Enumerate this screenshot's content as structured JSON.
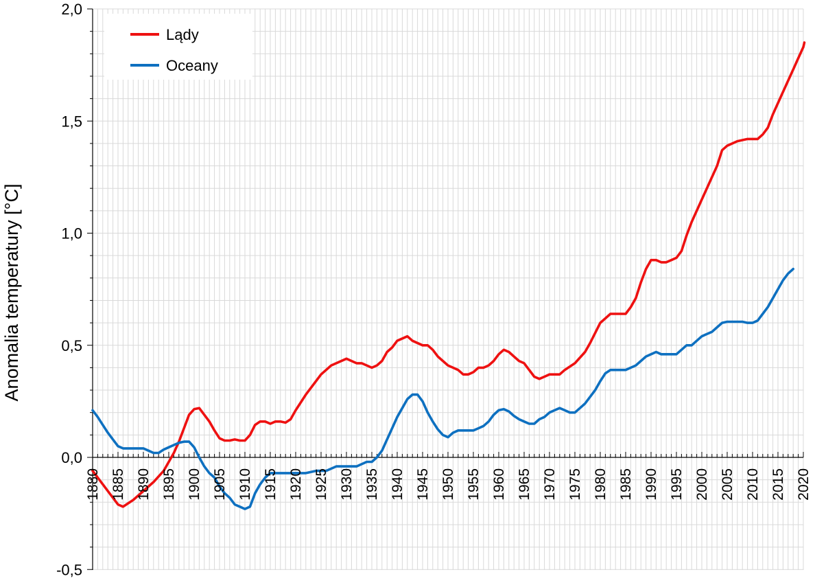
{
  "chart_data": {
    "type": "line",
    "title": "",
    "xlabel": "",
    "ylabel": "Anomalia temperatury [°C]",
    "xlim": [
      1880,
      2020
    ],
    "ylim": [
      -0.5,
      2.0
    ],
    "grid": true,
    "legend_position": "top-left",
    "y_ticks": [
      {
        "value": 2.0,
        "label": "2,0"
      },
      {
        "value": 1.5,
        "label": "1,5"
      },
      {
        "value": 1.0,
        "label": "1,0"
      },
      {
        "value": 0.5,
        "label": "0,5"
      },
      {
        "value": 0.0,
        "label": "0,0"
      },
      {
        "value": -0.5,
        "label": "-0,5"
      }
    ],
    "x_ticks": [
      1880,
      1885,
      1890,
      1895,
      1900,
      1905,
      1910,
      1915,
      1920,
      1925,
      1930,
      1935,
      1940,
      1945,
      1950,
      1955,
      1960,
      1965,
      1970,
      1975,
      1980,
      1985,
      1990,
      1995,
      2000,
      2005,
      2010,
      2015,
      2020
    ],
    "series": [
      {
        "name": "Lądy",
        "color": "#ee1111",
        "points": [
          [
            1880,
            -0.06
          ],
          [
            1882,
            -0.12
          ],
          [
            1884,
            -0.18
          ],
          [
            1885,
            -0.21
          ],
          [
            1886,
            -0.22
          ],
          [
            1888,
            -0.19
          ],
          [
            1890,
            -0.15
          ],
          [
            1892,
            -0.11
          ],
          [
            1894,
            -0.06
          ],
          [
            1896,
            0.02
          ],
          [
            1897,
            0.07
          ],
          [
            1898,
            0.13
          ],
          [
            1899,
            0.19
          ],
          [
            1900,
            0.215
          ],
          [
            1901,
            0.22
          ],
          [
            1902,
            0.19
          ],
          [
            1903,
            0.16
          ],
          [
            1904,
            0.12
          ],
          [
            1905,
            0.085
          ],
          [
            1906,
            0.075
          ],
          [
            1907,
            0.075
          ],
          [
            1908,
            0.08
          ],
          [
            1909,
            0.075
          ],
          [
            1910,
            0.075
          ],
          [
            1911,
            0.1
          ],
          [
            1912,
            0.145
          ],
          [
            1913,
            0.16
          ],
          [
            1914,
            0.16
          ],
          [
            1915,
            0.15
          ],
          [
            1916,
            0.16
          ],
          [
            1917,
            0.16
          ],
          [
            1918,
            0.155
          ],
          [
            1919,
            0.17
          ],
          [
            1920,
            0.21
          ],
          [
            1922,
            0.28
          ],
          [
            1924,
            0.34
          ],
          [
            1925,
            0.37
          ],
          [
            1927,
            0.41
          ],
          [
            1930,
            0.44
          ],
          [
            1931,
            0.43
          ],
          [
            1932,
            0.42
          ],
          [
            1933,
            0.42
          ],
          [
            1935,
            0.4
          ],
          [
            1936,
            0.41
          ],
          [
            1937,
            0.43
          ],
          [
            1938,
            0.47
          ],
          [
            1939,
            0.49
          ],
          [
            1940,
            0.52
          ],
          [
            1942,
            0.54
          ],
          [
            1943,
            0.52
          ],
          [
            1945,
            0.5
          ],
          [
            1946,
            0.5
          ],
          [
            1947,
            0.48
          ],
          [
            1948,
            0.45
          ],
          [
            1950,
            0.41
          ],
          [
            1951,
            0.4
          ],
          [
            1952,
            0.39
          ],
          [
            1953,
            0.37
          ],
          [
            1954,
            0.37
          ],
          [
            1955,
            0.38
          ],
          [
            1956,
            0.4
          ],
          [
            1957,
            0.4
          ],
          [
            1958,
            0.41
          ],
          [
            1959,
            0.43
          ],
          [
            1960,
            0.46
          ],
          [
            1961,
            0.48
          ],
          [
            1962,
            0.47
          ],
          [
            1963,
            0.45
          ],
          [
            1964,
            0.43
          ],
          [
            1965,
            0.42
          ],
          [
            1966,
            0.39
          ],
          [
            1967,
            0.36
          ],
          [
            1968,
            0.35
          ],
          [
            1969,
            0.36
          ],
          [
            1970,
            0.37
          ],
          [
            1972,
            0.37
          ],
          [
            1973,
            0.39
          ],
          [
            1975,
            0.42
          ],
          [
            1977,
            0.47
          ],
          [
            1978,
            0.51
          ],
          [
            1980,
            0.6
          ],
          [
            1981,
            0.62
          ],
          [
            1982,
            0.64
          ],
          [
            1983,
            0.64
          ],
          [
            1985,
            0.64
          ],
          [
            1986,
            0.67
          ],
          [
            1987,
            0.71
          ],
          [
            1988,
            0.78
          ],
          [
            1989,
            0.84
          ],
          [
            1990,
            0.88
          ],
          [
            1991,
            0.88
          ],
          [
            1992,
            0.87
          ],
          [
            1993,
            0.87
          ],
          [
            1994,
            0.88
          ],
          [
            1995,
            0.89
          ],
          [
            1996,
            0.92
          ],
          [
            1997,
            0.99
          ],
          [
            1998,
            1.05
          ],
          [
            2000,
            1.15
          ],
          [
            2001,
            1.2
          ],
          [
            2002,
            1.25
          ],
          [
            2003,
            1.3
          ],
          [
            2004,
            1.37
          ],
          [
            2005,
            1.39
          ],
          [
            2007,
            1.41
          ],
          [
            2009,
            1.42
          ],
          [
            2010,
            1.42
          ],
          [
            2011,
            1.42
          ],
          [
            2012,
            1.44
          ],
          [
            2013,
            1.47
          ],
          [
            2014,
            1.53
          ],
          [
            2015,
            1.58
          ],
          [
            2016,
            1.63
          ],
          [
            2017,
            1.68
          ],
          [
            2018,
            1.73
          ],
          [
            2019,
            1.78
          ],
          [
            2020,
            1.83
          ],
          [
            2020.2,
            1.85
          ]
        ]
      },
      {
        "name": "Oceany",
        "color": "#0e70c0",
        "points": [
          [
            1880,
            0.21
          ],
          [
            1881,
            0.18
          ],
          [
            1882,
            0.145
          ],
          [
            1883,
            0.11
          ],
          [
            1884,
            0.08
          ],
          [
            1885,
            0.05
          ],
          [
            1886,
            0.04
          ],
          [
            1888,
            0.04
          ],
          [
            1890,
            0.04
          ],
          [
            1891,
            0.03
          ],
          [
            1892,
            0.02
          ],
          [
            1893,
            0.02
          ],
          [
            1894,
            0.035
          ],
          [
            1895,
            0.045
          ],
          [
            1896,
            0.055
          ],
          [
            1897,
            0.065
          ],
          [
            1898,
            0.07
          ],
          [
            1899,
            0.07
          ],
          [
            1900,
            0.045
          ],
          [
            1901,
            0.0
          ],
          [
            1902,
            -0.04
          ],
          [
            1903,
            -0.07
          ],
          [
            1904,
            -0.09
          ],
          [
            1905,
            -0.13
          ],
          [
            1906,
            -0.16
          ],
          [
            1907,
            -0.18
          ],
          [
            1908,
            -0.21
          ],
          [
            1909,
            -0.22
          ],
          [
            1910,
            -0.23
          ],
          [
            1911,
            -0.22
          ],
          [
            1912,
            -0.16
          ],
          [
            1913,
            -0.12
          ],
          [
            1914,
            -0.09
          ],
          [
            1915,
            -0.07
          ],
          [
            1916,
            -0.07
          ],
          [
            1917,
            -0.07
          ],
          [
            1918,
            -0.07
          ],
          [
            1920,
            -0.07
          ],
          [
            1922,
            -0.07
          ],
          [
            1924,
            -0.06
          ],
          [
            1926,
            -0.06
          ],
          [
            1928,
            -0.04
          ],
          [
            1932,
            -0.04
          ],
          [
            1934,
            -0.02
          ],
          [
            1935,
            -0.02
          ],
          [
            1936,
            0.0
          ],
          [
            1937,
            0.03
          ],
          [
            1938,
            0.08
          ],
          [
            1939,
            0.13
          ],
          [
            1940,
            0.18
          ],
          [
            1941,
            0.22
          ],
          [
            1942,
            0.26
          ],
          [
            1943,
            0.28
          ],
          [
            1944,
            0.28
          ],
          [
            1945,
            0.25
          ],
          [
            1946,
            0.2
          ],
          [
            1947,
            0.16
          ],
          [
            1948,
            0.125
          ],
          [
            1949,
            0.1
          ],
          [
            1950,
            0.09
          ],
          [
            1951,
            0.11
          ],
          [
            1952,
            0.12
          ],
          [
            1953,
            0.12
          ],
          [
            1955,
            0.12
          ],
          [
            1956,
            0.13
          ],
          [
            1957,
            0.14
          ],
          [
            1958,
            0.16
          ],
          [
            1959,
            0.19
          ],
          [
            1960,
            0.21
          ],
          [
            1961,
            0.215
          ],
          [
            1962,
            0.205
          ],
          [
            1963,
            0.185
          ],
          [
            1964,
            0.17
          ],
          [
            1965,
            0.16
          ],
          [
            1966,
            0.15
          ],
          [
            1967,
            0.15
          ],
          [
            1968,
            0.17
          ],
          [
            1969,
            0.18
          ],
          [
            1970,
            0.2
          ],
          [
            1971,
            0.21
          ],
          [
            1972,
            0.22
          ],
          [
            1973,
            0.21
          ],
          [
            1974,
            0.2
          ],
          [
            1975,
            0.2
          ],
          [
            1976,
            0.22
          ],
          [
            1977,
            0.24
          ],
          [
            1978,
            0.27
          ],
          [
            1979,
            0.3
          ],
          [
            1980,
            0.34
          ],
          [
            1981,
            0.375
          ],
          [
            1982,
            0.39
          ],
          [
            1983,
            0.39
          ],
          [
            1985,
            0.39
          ],
          [
            1986,
            0.4
          ],
          [
            1987,
            0.41
          ],
          [
            1988,
            0.43
          ],
          [
            1989,
            0.45
          ],
          [
            1990,
            0.46
          ],
          [
            1991,
            0.47
          ],
          [
            1992,
            0.46
          ],
          [
            1995,
            0.46
          ],
          [
            1996,
            0.48
          ],
          [
            1997,
            0.5
          ],
          [
            1998,
            0.5
          ],
          [
            1999,
            0.52
          ],
          [
            2000,
            0.54
          ],
          [
            2001,
            0.55
          ],
          [
            2002,
            0.56
          ],
          [
            2003,
            0.58
          ],
          [
            2004,
            0.6
          ],
          [
            2005,
            0.605
          ],
          [
            2008,
            0.605
          ],
          [
            2009,
            0.6
          ],
          [
            2010,
            0.6
          ],
          [
            2011,
            0.61
          ],
          [
            2012,
            0.64
          ],
          [
            2013,
            0.67
          ],
          [
            2014,
            0.71
          ],
          [
            2015,
            0.75
          ],
          [
            2016,
            0.79
          ],
          [
            2017,
            0.82
          ],
          [
            2018,
            0.84
          ]
        ]
      }
    ]
  }
}
